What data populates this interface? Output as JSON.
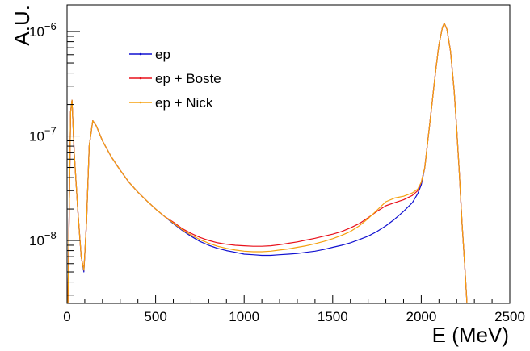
{
  "chart_data": {
    "type": "line",
    "xlabel": "E (MeV)",
    "ylabel": "A.U.",
    "xlim": [
      0,
      2500
    ],
    "ylim": [
      2.5e-09,
      1.8e-06
    ],
    "y_scale": "log",
    "grid": false,
    "legend_position": "top-left",
    "x_ticks": [
      {
        "value": 0,
        "label": "0"
      },
      {
        "value": 500,
        "label": "500"
      },
      {
        "value": 1000,
        "label": "1000"
      },
      {
        "value": 1500,
        "label": "1500"
      },
      {
        "value": 2000,
        "label": "2000"
      },
      {
        "value": 2500,
        "label": "2500"
      }
    ],
    "y_ticks": [
      {
        "value": 1e-08,
        "base": "10",
        "exp": "−8"
      },
      {
        "value": 1e-07,
        "base": "10",
        "exp": "−7"
      },
      {
        "value": 1e-06,
        "base": "10",
        "exp": "−6"
      }
    ],
    "series": [
      {
        "name": "ep",
        "color": "#1010d0",
        "points": [
          [
            5,
            2.3e-09
          ],
          [
            20,
            1.7e-07
          ],
          [
            28,
            2.2e-07
          ],
          [
            40,
            7e-08
          ],
          [
            60,
            2e-08
          ],
          [
            80,
            7e-09
          ],
          [
            95,
            5e-09
          ],
          [
            110,
            1.5e-08
          ],
          [
            125,
            8e-08
          ],
          [
            145,
            1.4e-07
          ],
          [
            165,
            1.25e-07
          ],
          [
            200,
            9e-08
          ],
          [
            250,
            6.3e-08
          ],
          [
            300,
            4.7e-08
          ],
          [
            350,
            3.6e-08
          ],
          [
            400,
            2.9e-08
          ],
          [
            450,
            2.4e-08
          ],
          [
            500,
            2e-08
          ],
          [
            550,
            1.7e-08
          ],
          [
            600,
            1.45e-08
          ],
          [
            650,
            1.25e-08
          ],
          [
            700,
            1.1e-08
          ],
          [
            750,
            9.8e-09
          ],
          [
            800,
            9e-09
          ],
          [
            850,
            8.4e-09
          ],
          [
            900,
            8e-09
          ],
          [
            950,
            7.7e-09
          ],
          [
            1000,
            7.4e-09
          ],
          [
            1050,
            7.3e-09
          ],
          [
            1100,
            7.2e-09
          ],
          [
            1150,
            7.2e-09
          ],
          [
            1200,
            7.3e-09
          ],
          [
            1250,
            7.4e-09
          ],
          [
            1300,
            7.5e-09
          ],
          [
            1350,
            7.7e-09
          ],
          [
            1400,
            7.9e-09
          ],
          [
            1450,
            8.2e-09
          ],
          [
            1500,
            8.6e-09
          ],
          [
            1550,
            9e-09
          ],
          [
            1600,
            9.5e-09
          ],
          [
            1650,
            1.02e-08
          ],
          [
            1700,
            1.1e-08
          ],
          [
            1750,
            1.22e-08
          ],
          [
            1800,
            1.38e-08
          ],
          [
            1850,
            1.6e-08
          ],
          [
            1900,
            1.9e-08
          ],
          [
            1950,
            2.3e-08
          ],
          [
            1980,
            2.8e-08
          ],
          [
            2000,
            3.4e-08
          ],
          [
            2020,
            5e-08
          ],
          [
            2040,
            1e-07
          ],
          [
            2060,
            2e-07
          ],
          [
            2080,
            4e-07
          ],
          [
            2100,
            7.5e-07
          ],
          [
            2120,
            1.1e-06
          ],
          [
            2130,
            1.2e-06
          ],
          [
            2145,
            1.05e-06
          ],
          [
            2165,
            6.5e-07
          ],
          [
            2185,
            2.8e-07
          ],
          [
            2200,
            1.2e-07
          ],
          [
            2215,
            4.5e-08
          ],
          [
            2230,
            1.5e-08
          ],
          [
            2245,
            6e-09
          ],
          [
            2258,
            2.5e-09
          ]
        ]
      },
      {
        "name": "ep + Boste",
        "color": "#e8101a",
        "points": [
          [
            5,
            2.3e-09
          ],
          [
            20,
            1.7e-07
          ],
          [
            28,
            2.2e-07
          ],
          [
            40,
            7e-08
          ],
          [
            60,
            2e-08
          ],
          [
            80,
            7e-09
          ],
          [
            95,
            5.2e-09
          ],
          [
            110,
            1.5e-08
          ],
          [
            125,
            8e-08
          ],
          [
            145,
            1.4e-07
          ],
          [
            165,
            1.25e-07
          ],
          [
            200,
            9e-08
          ],
          [
            250,
            6.3e-08
          ],
          [
            300,
            4.7e-08
          ],
          [
            350,
            3.6e-08
          ],
          [
            400,
            2.9e-08
          ],
          [
            450,
            2.4e-08
          ],
          [
            500,
            2e-08
          ],
          [
            550,
            1.7e-08
          ],
          [
            600,
            1.5e-08
          ],
          [
            650,
            1.3e-08
          ],
          [
            700,
            1.17e-08
          ],
          [
            750,
            1.07e-08
          ],
          [
            800,
            1e-08
          ],
          [
            850,
            9.5e-09
          ],
          [
            900,
            9.2e-09
          ],
          [
            950,
            9e-09
          ],
          [
            1000,
            8.9e-09
          ],
          [
            1050,
            8.8e-09
          ],
          [
            1100,
            8.8e-09
          ],
          [
            1150,
            8.9e-09
          ],
          [
            1200,
            9.1e-09
          ],
          [
            1250,
            9.4e-09
          ],
          [
            1300,
            9.7e-09
          ],
          [
            1350,
            1.01e-08
          ],
          [
            1400,
            1.05e-08
          ],
          [
            1450,
            1.1e-08
          ],
          [
            1500,
            1.15e-08
          ],
          [
            1550,
            1.22e-08
          ],
          [
            1600,
            1.32e-08
          ],
          [
            1650,
            1.45e-08
          ],
          [
            1700,
            1.65e-08
          ],
          [
            1750,
            1.9e-08
          ],
          [
            1800,
            2.15e-08
          ],
          [
            1850,
            2.3e-08
          ],
          [
            1900,
            2.45e-08
          ],
          [
            1950,
            2.7e-08
          ],
          [
            1980,
            3e-08
          ],
          [
            2000,
            3.6e-08
          ],
          [
            2020,
            5e-08
          ],
          [
            2040,
            1e-07
          ],
          [
            2060,
            2e-07
          ],
          [
            2080,
            4e-07
          ],
          [
            2100,
            7.5e-07
          ],
          [
            2120,
            1.1e-06
          ],
          [
            2130,
            1.2e-06
          ],
          [
            2145,
            1.05e-06
          ],
          [
            2165,
            6.5e-07
          ],
          [
            2185,
            2.8e-07
          ],
          [
            2200,
            1.2e-07
          ],
          [
            2215,
            4.5e-08
          ],
          [
            2230,
            1.5e-08
          ],
          [
            2245,
            6e-09
          ],
          [
            2258,
            2.5e-09
          ]
        ]
      },
      {
        "name": "ep + Nick",
        "color": "#f5a10f",
        "points": [
          [
            5,
            2.3e-09
          ],
          [
            20,
            1.7e-07
          ],
          [
            28,
            2.2e-07
          ],
          [
            40,
            7e-08
          ],
          [
            60,
            2e-08
          ],
          [
            80,
            7e-09
          ],
          [
            95,
            5.2e-09
          ],
          [
            110,
            1.5e-08
          ],
          [
            125,
            8e-08
          ],
          [
            145,
            1.4e-07
          ],
          [
            165,
            1.25e-07
          ],
          [
            200,
            9e-08
          ],
          [
            250,
            6.3e-08
          ],
          [
            300,
            4.7e-08
          ],
          [
            350,
            3.6e-08
          ],
          [
            400,
            2.9e-08
          ],
          [
            450,
            2.4e-08
          ],
          [
            500,
            2e-08
          ],
          [
            550,
            1.7e-08
          ],
          [
            600,
            1.47e-08
          ],
          [
            650,
            1.27e-08
          ],
          [
            700,
            1.13e-08
          ],
          [
            750,
            1.02e-08
          ],
          [
            800,
            9.4e-09
          ],
          [
            850,
            8.8e-09
          ],
          [
            900,
            8.4e-09
          ],
          [
            950,
            8.1e-09
          ],
          [
            1000,
            7.9e-09
          ],
          [
            1050,
            7.8e-09
          ],
          [
            1100,
            7.8e-09
          ],
          [
            1150,
            7.9e-09
          ],
          [
            1200,
            8.1e-09
          ],
          [
            1250,
            8.3e-09
          ],
          [
            1300,
            8.6e-09
          ],
          [
            1350,
            8.9e-09
          ],
          [
            1400,
            9.3e-09
          ],
          [
            1450,
            9.8e-09
          ],
          [
            1500,
            1.04e-08
          ],
          [
            1550,
            1.12e-08
          ],
          [
            1600,
            1.22e-08
          ],
          [
            1650,
            1.38e-08
          ],
          [
            1700,
            1.62e-08
          ],
          [
            1750,
            1.95e-08
          ],
          [
            1800,
            2.35e-08
          ],
          [
            1850,
            2.55e-08
          ],
          [
            1900,
            2.65e-08
          ],
          [
            1950,
            2.85e-08
          ],
          [
            1980,
            3.1e-08
          ],
          [
            2000,
            3.6e-08
          ],
          [
            2020,
            5e-08
          ],
          [
            2040,
            1e-07
          ],
          [
            2060,
            2e-07
          ],
          [
            2080,
            4e-07
          ],
          [
            2100,
            7.5e-07
          ],
          [
            2120,
            1.1e-06
          ],
          [
            2130,
            1.2e-06
          ],
          [
            2145,
            1.05e-06
          ],
          [
            2165,
            6.5e-07
          ],
          [
            2185,
            2.8e-07
          ],
          [
            2200,
            1.2e-07
          ],
          [
            2215,
            4.5e-08
          ],
          [
            2230,
            1.5e-08
          ],
          [
            2245,
            6e-09
          ],
          [
            2258,
            2.5e-09
          ]
        ]
      }
    ]
  }
}
